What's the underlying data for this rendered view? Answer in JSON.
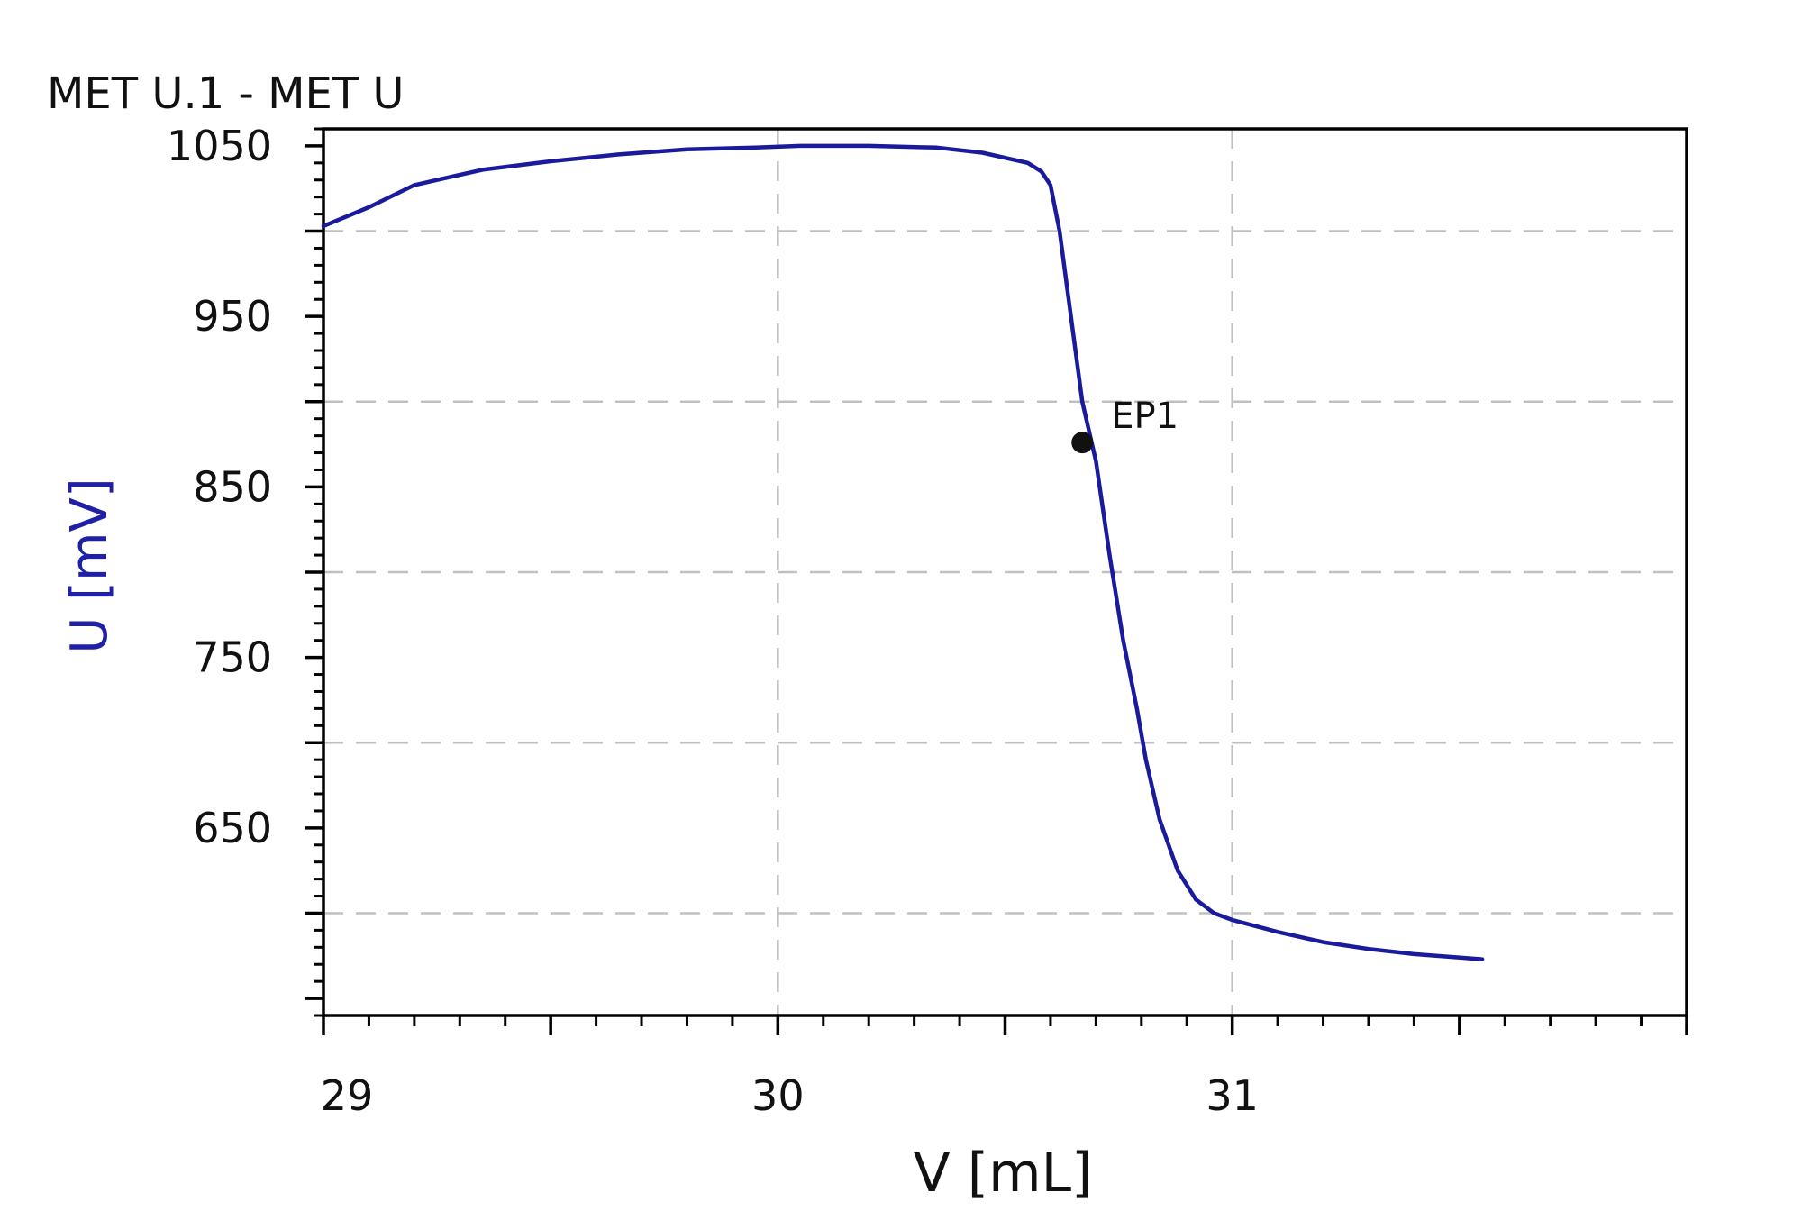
{
  "colors": {
    "series": "#1a1a9c",
    "ylabel": "#1f1fa8",
    "axis": "#000000",
    "grid": "#c0c0c0",
    "marker": "#111111"
  },
  "chart_data": {
    "type": "line",
    "title": "MET U.1 - MET U",
    "xlabel": "V [mL]",
    "ylabel": "U [mV]",
    "xlim": [
      29,
      32.0
    ],
    "ylim": [
      540,
      1060
    ],
    "x_ticks": [
      29,
      30,
      31
    ],
    "x_tick_labels": [
      "29",
      "30",
      "31"
    ],
    "y_ticks": [
      650,
      750,
      850,
      950,
      1050
    ],
    "y_tick_labels": [
      "650",
      "750",
      "850",
      "950",
      "1050"
    ],
    "x_grid": [
      30,
      31
    ],
    "y_grid": [
      600,
      700,
      800,
      900,
      1000
    ],
    "grid": true,
    "series": [
      {
        "x": [
          29.0,
          29.1,
          29.2,
          29.35,
          29.5,
          29.65,
          29.8,
          29.95,
          30.05,
          30.2,
          30.35,
          30.45,
          30.55,
          30.58,
          30.6,
          30.62,
          30.645,
          30.67,
          30.7,
          30.73,
          30.76,
          30.79,
          30.81,
          30.84,
          30.88,
          30.92,
          30.96,
          31.0,
          31.1,
          31.2,
          31.3,
          31.4,
          31.55
        ],
        "y": [
          1003,
          1014,
          1027,
          1036,
          1041,
          1045,
          1048,
          1049,
          1050,
          1050,
          1049,
          1046,
          1040,
          1035,
          1027,
          1000,
          950,
          900,
          865,
          810,
          760,
          720,
          690,
          655,
          625,
          608,
          600,
          596,
          589,
          583,
          579,
          576,
          573
        ]
      }
    ],
    "annotations": [
      {
        "label": "EP1",
        "x": 30.67,
        "y": 876
      }
    ]
  }
}
